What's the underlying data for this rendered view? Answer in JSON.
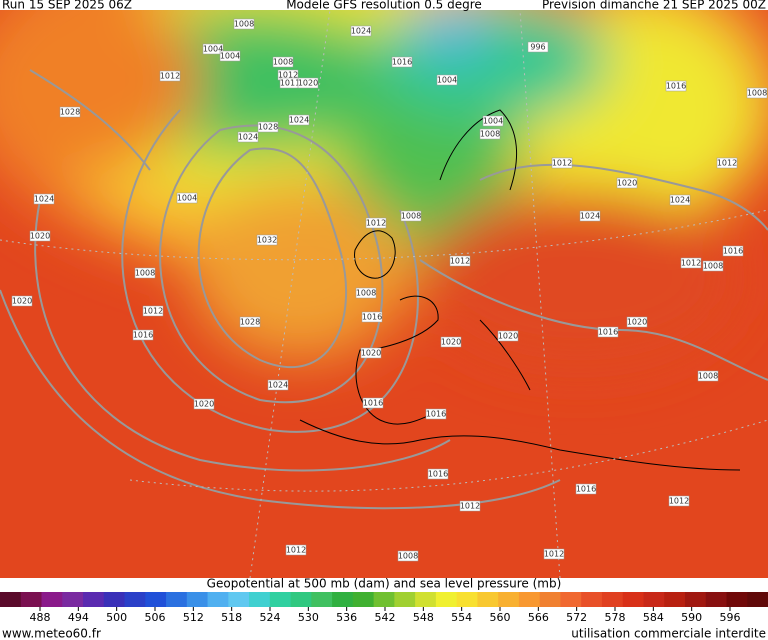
{
  "header": {
    "run": "Run 15 SEP 2025 06Z",
    "model": "Modele GFS resolution 0.5 degre",
    "forecast": "Prevision dimanche 21 SEP 2025 00Z"
  },
  "isobar_labels": [
    1008,
    1024,
    1004,
    1004,
    996,
    1012,
    1008,
    1016,
    1012,
    1011,
    1020,
    1004,
    1016,
    1008,
    1028,
    1024,
    1028,
    1004,
    1008,
    1024,
    1012,
    1012,
    1020,
    1004,
    1024,
    1024,
    1024,
    1008,
    1012,
    1020,
    1032,
    1016,
    1012,
    1008,
    1012,
    1008,
    1008,
    1020,
    1012,
    1016,
    1028,
    1016,
    1020,
    1016,
    1020,
    1020,
    1020,
    1008,
    1024,
    1020,
    1016,
    1016,
    1016,
    1016,
    1012,
    1012,
    1012,
    1008,
    1012
  ],
  "legend": {
    "title": "Geopotential at 500 mb (dam) and sea level pressure (mb)",
    "ticks": [
      488,
      494,
      500,
      506,
      512,
      518,
      524,
      530,
      536,
      542,
      548,
      554,
      560,
      566,
      572,
      578,
      584,
      590,
      596
    ],
    "colors": [
      "#5a0a2a",
      "#7a1050",
      "#8a1a8a",
      "#7a2aa0",
      "#5a2ab0",
      "#3a30b8",
      "#2a40c8",
      "#2050d8",
      "#2a70e0",
      "#3a90e8",
      "#50b0f0",
      "#60c8f0",
      "#40d0d0",
      "#30d0a0",
      "#30c880",
      "#40c060",
      "#30b040",
      "#40b030",
      "#70c030",
      "#a0d030",
      "#d0e030",
      "#f0f030",
      "#f8e030",
      "#f8c830",
      "#f8b030",
      "#f89830",
      "#f08030",
      "#f06830",
      "#e85028",
      "#e04020",
      "#d83018",
      "#c82818",
      "#b82010",
      "#a01810",
      "#881010",
      "#700808",
      "#600808"
    ]
  },
  "footer": {
    "site": "www.meteo60.fr",
    "notice": "utilisation commerciale interdite"
  }
}
